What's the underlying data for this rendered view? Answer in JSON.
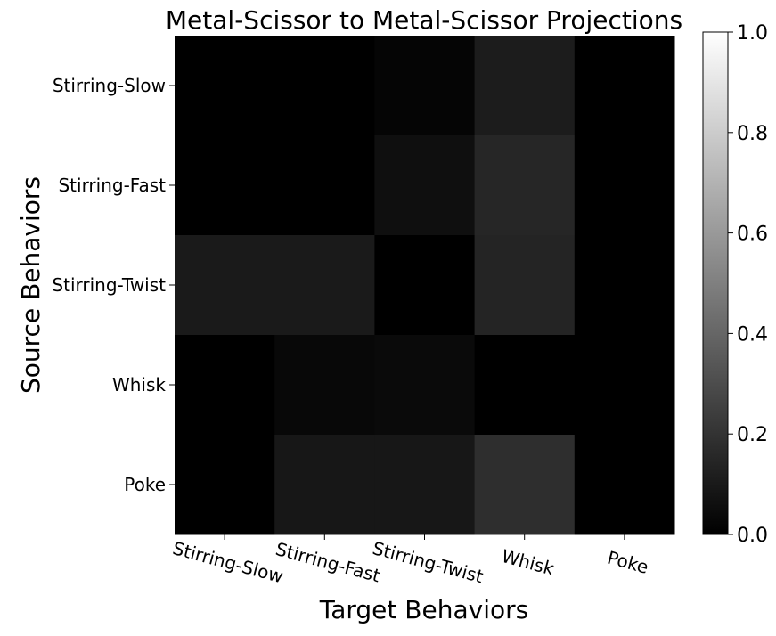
{
  "chart_data": {
    "type": "heatmap",
    "title": "Metal-Scissor to Metal-Scissor Projections",
    "xlabel": "Target Behaviors",
    "ylabel": "Source Behaviors",
    "x_categories": [
      "Stirring-Slow",
      "Stirring-Fast",
      "Stirring-Twist",
      "Whisk",
      "Poke"
    ],
    "y_categories": [
      "Stirring-Slow",
      "Stirring-Fast",
      "Stirring-Twist",
      "Whisk",
      "Poke"
    ],
    "values": [
      [
        0.0,
        0.0,
        0.02,
        0.11,
        0.0
      ],
      [
        0.0,
        0.0,
        0.06,
        0.15,
        0.0
      ],
      [
        0.1,
        0.1,
        0.0,
        0.14,
        0.0
      ],
      [
        0.0,
        0.03,
        0.04,
        0.0,
        0.0
      ],
      [
        0.0,
        0.09,
        0.09,
        0.18,
        0.0
      ]
    ],
    "colormap": "gray",
    "vmin": 0.0,
    "vmax": 1.0,
    "colorbar_ticks": [
      "0.0",
      "0.2",
      "0.4",
      "0.6",
      "0.8",
      "1.0"
    ],
    "grid": false
  }
}
